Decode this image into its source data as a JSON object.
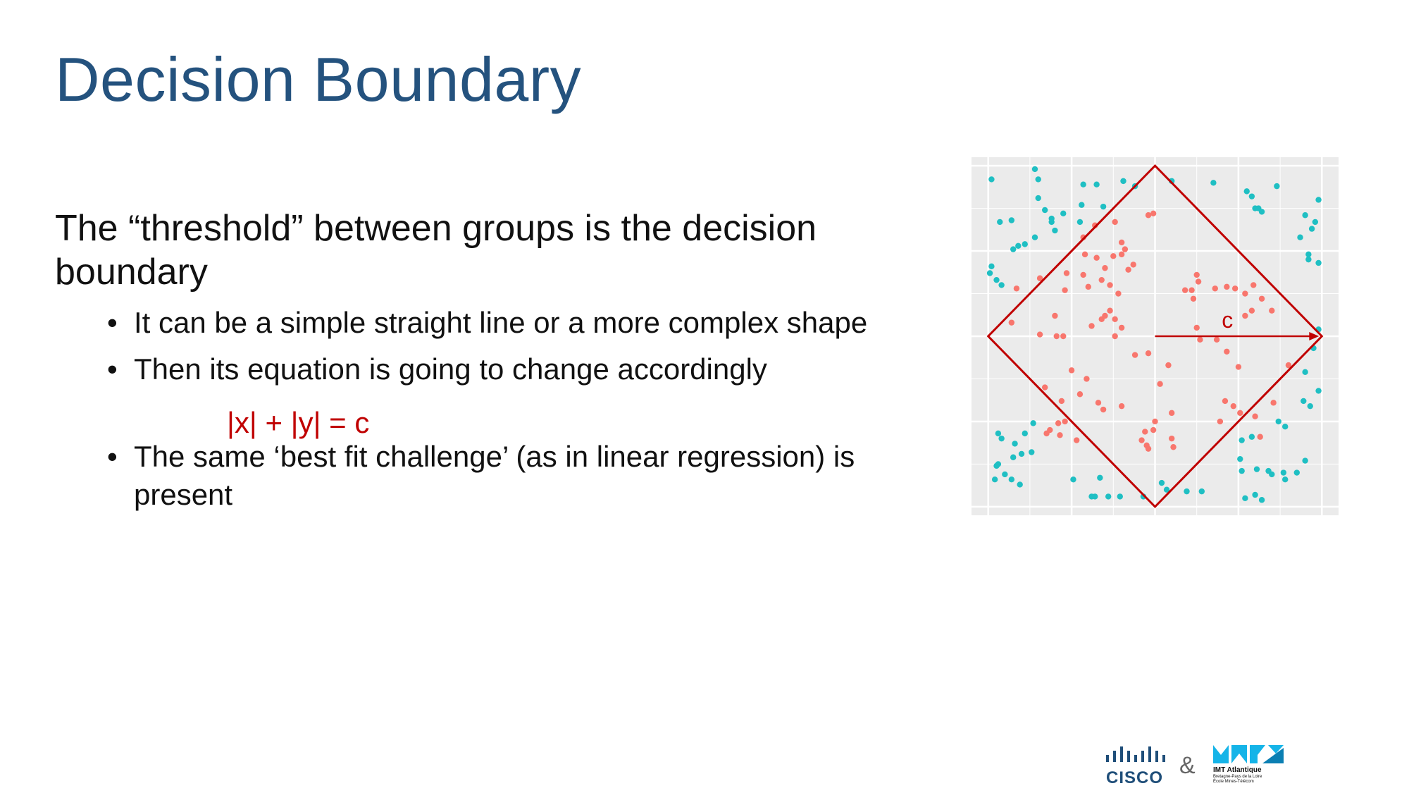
{
  "slide": {
    "title": "Decision Boundary",
    "lead": "The “threshold” between groups is the decision boundary",
    "bullets": [
      "It can be a simple straight line or a more complex shape",
      "Then its equation is going to change accordingly",
      "The same ‘best fit challenge’ (as in linear regression) is present"
    ],
    "equation": "|x| + |y| = c"
  },
  "figure": {
    "arrow_label": "c",
    "colors": {
      "panel": "#ebebeb",
      "grid": "#ffffff",
      "class_outside": "#1fbfc3",
      "class_inside": "#f8766d",
      "boundary": "#c00000"
    }
  },
  "chart_data": {
    "type": "scatter",
    "title": "",
    "xlabel": "",
    "ylabel": "",
    "xlim": [
      -1.1,
      1.1
    ],
    "ylim": [
      -1.05,
      1.05
    ],
    "grid": true,
    "boundary": {
      "shape": "diamond",
      "equation": "|x| + |y| = c",
      "c": 1.0
    },
    "series": [
      {
        "points": [
          [
            -0.98,
            0.92
          ],
          [
            -0.72,
            0.98
          ],
          [
            -0.7,
            0.92
          ],
          [
            -0.93,
            0.67
          ],
          [
            -0.86,
            0.68
          ],
          [
            -0.7,
            0.81
          ],
          [
            -0.66,
            0.74
          ],
          [
            -0.62,
            0.67
          ],
          [
            -0.62,
            0.69
          ],
          [
            -0.55,
            0.72
          ],
          [
            -0.43,
            0.89
          ],
          [
            -0.44,
            0.77
          ],
          [
            -0.45,
            0.67
          ],
          [
            -0.35,
            0.89
          ],
          [
            -0.31,
            0.76
          ],
          [
            -0.19,
            0.91
          ],
          [
            -0.12,
            0.88
          ],
          [
            -0.6,
            0.62
          ],
          [
            -0.72,
            0.58
          ],
          [
            -0.78,
            0.54
          ],
          [
            -0.82,
            0.53
          ],
          [
            -0.85,
            0.51
          ],
          [
            -0.98,
            0.41
          ],
          [
            -0.99,
            0.37
          ],
          [
            -0.95,
            0.33
          ],
          [
            -0.92,
            0.3
          ],
          [
            0.1,
            0.91
          ],
          [
            0.35,
            0.9
          ],
          [
            0.55,
            0.85
          ],
          [
            0.73,
            0.88
          ],
          [
            0.98,
            0.8
          ],
          [
            0.96,
            0.67
          ],
          [
            0.94,
            0.63
          ],
          [
            0.9,
            0.71
          ],
          [
            0.87,
            0.58
          ],
          [
            0.92,
            0.48
          ],
          [
            0.92,
            0.45
          ],
          [
            0.98,
            0.43
          ],
          [
            0.64,
            0.73
          ],
          [
            0.6,
            0.75
          ],
          [
            0.62,
            0.75
          ],
          [
            0.58,
            0.82
          ],
          [
            0.98,
            0.04
          ],
          [
            0.95,
            -0.07
          ],
          [
            0.9,
            -0.21
          ],
          [
            0.98,
            -0.32
          ],
          [
            0.89,
            -0.38
          ],
          [
            0.93,
            -0.41
          ],
          [
            0.78,
            -0.53
          ],
          [
            0.74,
            -0.5
          ],
          [
            0.58,
            -0.59
          ],
          [
            0.52,
            -0.61
          ],
          [
            0.51,
            -0.72
          ],
          [
            0.52,
            -0.79
          ],
          [
            0.61,
            -0.78
          ],
          [
            0.7,
            -0.81
          ],
          [
            0.68,
            -0.79
          ],
          [
            0.77,
            -0.8
          ],
          [
            0.78,
            -0.84
          ],
          [
            0.85,
            -0.8
          ],
          [
            0.9,
            -0.73
          ],
          [
            0.64,
            -0.96
          ],
          [
            0.54,
            -0.95
          ],
          [
            0.6,
            -0.93
          ],
          [
            0.28,
            -0.91
          ],
          [
            0.19,
            -0.91
          ],
          [
            0.07,
            -0.9
          ],
          [
            0.04,
            -0.86
          ],
          [
            -0.07,
            -0.94
          ],
          [
            -0.21,
            -0.94
          ],
          [
            -0.28,
            -0.94
          ],
          [
            -0.36,
            -0.94
          ],
          [
            -0.38,
            -0.94
          ],
          [
            -0.33,
            -0.83
          ],
          [
            -0.49,
            -0.84
          ],
          [
            -0.74,
            -0.68
          ],
          [
            -0.73,
            -0.51
          ],
          [
            -0.78,
            -0.57
          ],
          [
            -0.84,
            -0.63
          ],
          [
            -0.85,
            -0.71
          ],
          [
            -0.94,
            -0.75
          ],
          [
            -0.95,
            -0.76
          ],
          [
            -0.9,
            -0.81
          ],
          [
            -0.86,
            -0.84
          ],
          [
            -0.81,
            -0.87
          ],
          [
            -0.96,
            -0.84
          ],
          [
            -0.94,
            -0.57
          ],
          [
            -0.92,
            -0.6
          ],
          [
            -0.8,
            -0.69
          ]
        ]
      },
      {
        "points": [
          [
            -0.04,
            0.71
          ],
          [
            -0.01,
            0.72
          ],
          [
            -0.36,
            0.65
          ],
          [
            -0.24,
            0.67
          ],
          [
            -0.43,
            0.58
          ],
          [
            -0.2,
            0.55
          ],
          [
            -0.18,
            0.51
          ],
          [
            -0.25,
            0.47
          ],
          [
            -0.2,
            0.48
          ],
          [
            -0.42,
            0.48
          ],
          [
            -0.35,
            0.46
          ],
          [
            -0.43,
            0.36
          ],
          [
            -0.3,
            0.4
          ],
          [
            -0.4,
            0.29
          ],
          [
            -0.32,
            0.33
          ],
          [
            -0.27,
            0.3
          ],
          [
            -0.53,
            0.37
          ],
          [
            -0.69,
            0.34
          ],
          [
            -0.83,
            0.28
          ],
          [
            -0.13,
            0.42
          ],
          [
            -0.16,
            0.39
          ],
          [
            -0.54,
            0.27
          ],
          [
            -0.22,
            0.25
          ],
          [
            -0.3,
            0.12
          ],
          [
            -0.27,
            0.15
          ],
          [
            -0.32,
            0.1
          ],
          [
            -0.24,
            0.1
          ],
          [
            -0.38,
            0.06
          ],
          [
            -0.6,
            0.12
          ],
          [
            -0.69,
            0.01
          ],
          [
            -0.55,
            0.0
          ],
          [
            -0.59,
            0.0
          ],
          [
            -0.86,
            0.08
          ],
          [
            -0.5,
            -0.2
          ],
          [
            -0.2,
            0.05
          ],
          [
            -0.24,
            0.0
          ],
          [
            -0.12,
            -0.11
          ],
          [
            -0.04,
            -0.1
          ],
          [
            0.03,
            -0.28
          ],
          [
            0.26,
            0.32
          ],
          [
            0.25,
            0.36
          ],
          [
            0.22,
            0.27
          ],
          [
            0.18,
            0.27
          ],
          [
            0.23,
            0.22
          ],
          [
            0.36,
            0.28
          ],
          [
            0.43,
            0.29
          ],
          [
            0.54,
            0.25
          ],
          [
            0.48,
            0.28
          ],
          [
            0.59,
            0.3
          ],
          [
            0.54,
            0.12
          ],
          [
            0.58,
            0.15
          ],
          [
            0.64,
            0.22
          ],
          [
            0.7,
            0.15
          ],
          [
            0.25,
            0.05
          ],
          [
            0.27,
            -0.02
          ],
          [
            0.37,
            -0.02
          ],
          [
            0.43,
            -0.09
          ],
          [
            0.5,
            -0.18
          ],
          [
            0.42,
            -0.38
          ],
          [
            0.47,
            -0.41
          ],
          [
            0.51,
            -0.45
          ],
          [
            0.39,
            -0.5
          ],
          [
            0.6,
            -0.47
          ],
          [
            0.63,
            -0.59
          ],
          [
            0.71,
            -0.39
          ],
          [
            0.8,
            -0.17
          ],
          [
            0.08,
            -0.17
          ],
          [
            0.0,
            -0.5
          ],
          [
            0.1,
            -0.45
          ],
          [
            -0.01,
            -0.55
          ],
          [
            0.1,
            -0.6
          ],
          [
            0.11,
            -0.65
          ],
          [
            -0.06,
            -0.56
          ],
          [
            -0.08,
            -0.61
          ],
          [
            -0.05,
            -0.64
          ],
          [
            -0.04,
            -0.66
          ],
          [
            -0.2,
            -0.41
          ],
          [
            -0.31,
            -0.43
          ],
          [
            -0.34,
            -0.39
          ],
          [
            -0.45,
            -0.34
          ],
          [
            -0.56,
            -0.38
          ],
          [
            -0.41,
            -0.25
          ],
          [
            -0.58,
            -0.51
          ],
          [
            -0.47,
            -0.61
          ],
          [
            -0.65,
            -0.57
          ],
          [
            -0.63,
            -0.55
          ],
          [
            -0.57,
            -0.58
          ],
          [
            -0.66,
            -0.3
          ],
          [
            -0.54,
            -0.5
          ]
        ]
      }
    ]
  }
}
